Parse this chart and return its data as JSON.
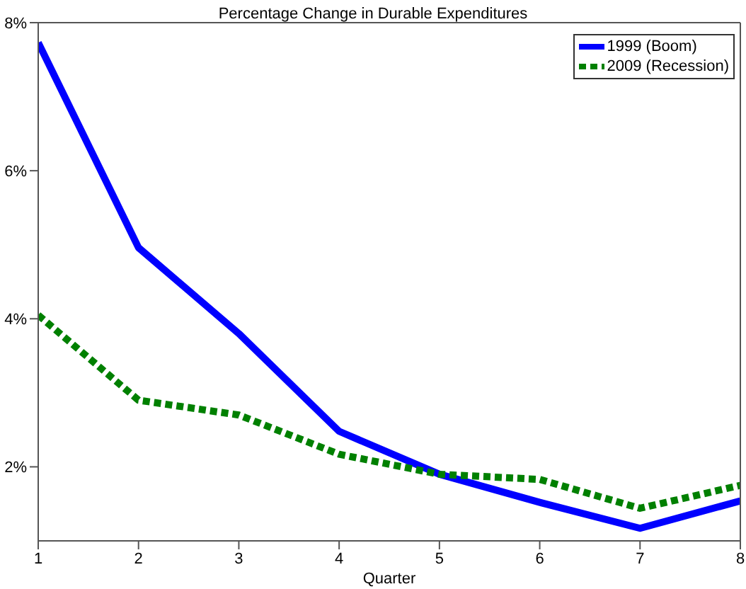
{
  "chart_data": {
    "type": "line",
    "title": "Percentage Change in Durable Expenditures",
    "xlabel": "Quarter",
    "x": [
      1,
      2,
      3,
      4,
      5,
      6,
      7,
      8
    ],
    "series": [
      {
        "name": "1999 (Boom)",
        "color": "#0000ff",
        "line_style": "solid",
        "values": [
          7.73,
          4.96,
          3.8,
          2.48,
          1.9,
          1.52,
          1.17,
          1.54
        ]
      },
      {
        "name": "2009 (Recession)",
        "color": "#008000",
        "line_style": "dotted",
        "values": [
          4.05,
          2.9,
          2.7,
          2.17,
          1.9,
          1.83,
          1.44,
          1.75
        ]
      }
    ],
    "xlim": [
      1,
      8
    ],
    "xticks": [
      1,
      2,
      3,
      4,
      5,
      6,
      7,
      8
    ],
    "ylim": [
      1,
      8
    ],
    "yticks": [
      {
        "value": 2,
        "label": "2%"
      },
      {
        "value": 4,
        "label": "4%"
      },
      {
        "value": 6,
        "label": "6%"
      },
      {
        "value": 8,
        "label": "8%"
      }
    ],
    "grid": false,
    "legend": "top right",
    "marker": "none"
  }
}
